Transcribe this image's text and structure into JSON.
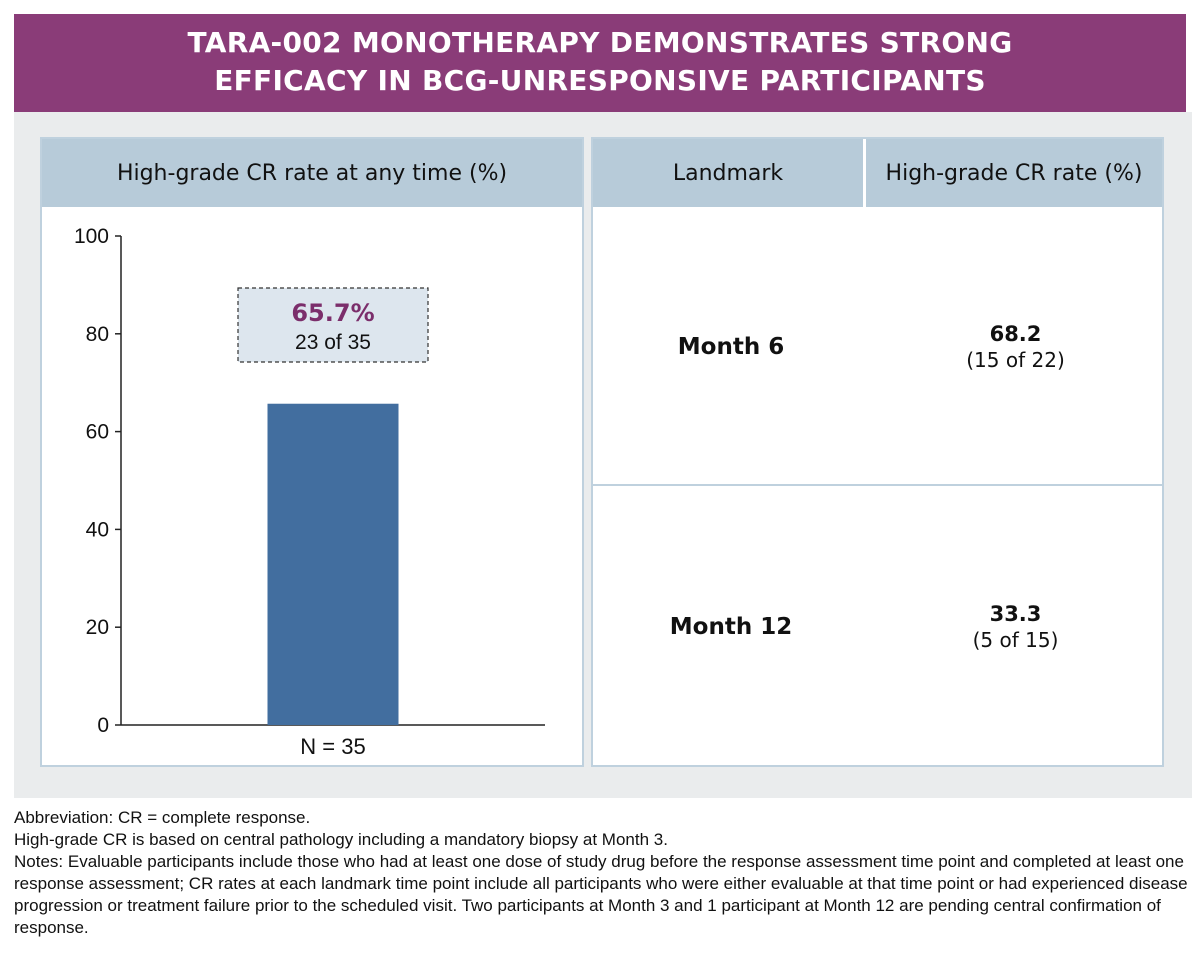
{
  "banner": {
    "line1": "TARA-002 MONOTHERAPY DEMONSTRATES STRONG",
    "line2": "EFFICACY IN BCG-UNRESPONSIVE PARTICIPANTS"
  },
  "chart_data": {
    "type": "bar",
    "title": "High-grade CR rate at any time (%)",
    "categories": [
      "N = 35"
    ],
    "values": [
      65.7
    ],
    "ylim": [
      0,
      100
    ],
    "yticks": [
      0,
      20,
      40,
      60,
      80,
      100
    ],
    "ytick_labels": [
      "0",
      "20",
      "40",
      "60",
      "80",
      "100"
    ],
    "grid": false,
    "bar_color": "#426e9f",
    "annotation": {
      "value_label": "65.7%",
      "detail": "23 of 35",
      "value_color": "#7b2e6b"
    }
  },
  "table": {
    "headers": [
      "Landmark",
      "High-grade CR rate (%)"
    ],
    "rows": [
      {
        "landmark": "Month 6",
        "rate": "68.2",
        "fraction": "(15 of 22)"
      },
      {
        "landmark": "Month 12",
        "rate": "33.3",
        "fraction": "(5 of 15)"
      }
    ]
  },
  "footnotes": [
    "Abbreviation: CR = complete response.",
    "High-grade CR is based on central pathology including a mandatory biopsy at Month 3.",
    "Notes: Evaluable participants include those who had at least one dose of study drug before the response assessment time point and completed at least one response assessment; CR rates at each landmark time point include all participants who were either evaluable at that time point or had experienced disease progression or treatment failure prior to the scheduled visit. Two participants at Month 3 and 1 participant at Month 12 are pending central confirmation of response."
  ],
  "colors": {
    "banner": "#8a3c78",
    "header_fill": "#b7cbd9",
    "panel_border": "#bfd1de",
    "background": "#eaeced"
  }
}
